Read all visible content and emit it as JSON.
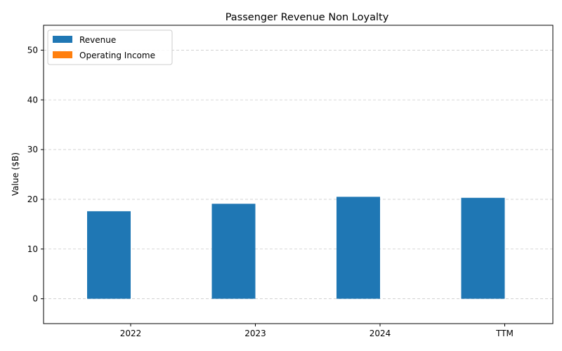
{
  "chart_data": {
    "type": "bar",
    "title": "Passenger Revenue Non Loyalty",
    "xlabel": "",
    "ylabel": "Value ($B)",
    "categories": [
      "2022",
      "2023",
      "2024",
      "TTM"
    ],
    "series": [
      {
        "name": "Revenue",
        "values": [
          17.6,
          19.1,
          20.5,
          20.3
        ],
        "color": "#1f77b4"
      },
      {
        "name": "Operating Income",
        "values": [
          0,
          0,
          0,
          0
        ],
        "color": "#ff7f0e"
      }
    ],
    "ylim": [
      -5,
      55
    ],
    "yticks": [
      0,
      10,
      20,
      30,
      40,
      50
    ],
    "grid": "y-dashed",
    "legend_position": "top-left"
  }
}
